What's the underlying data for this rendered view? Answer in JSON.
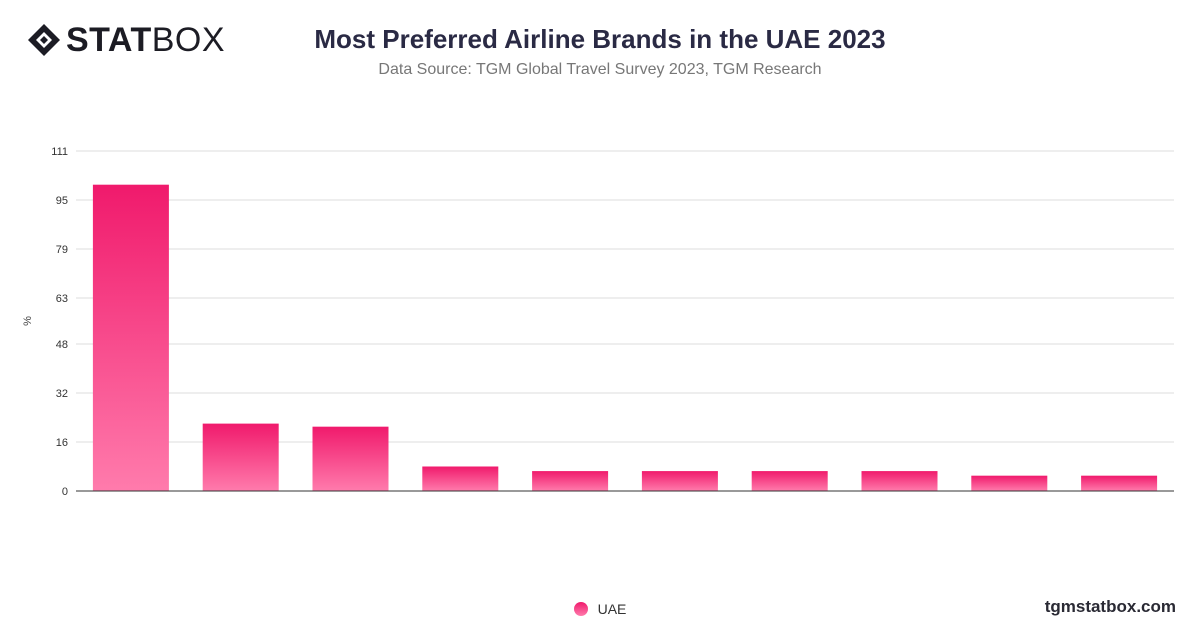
{
  "brand": {
    "logo_bold": "STAT",
    "logo_light": "BOX",
    "site": "tgmstatbox.com"
  },
  "colors": {
    "bar_top": "#f01a6c",
    "bar_bottom": "#ff7bac",
    "grid": "#dddddd",
    "axis": "#333333"
  },
  "chart_data": {
    "type": "bar",
    "title": "Most Preferred Airline Brands in the UAE 2023",
    "subtitle": "Data Source: TGM Global Travel Survey 2023, TGM Research",
    "ylabel": "%",
    "xlabel": "",
    "ylim": [
      0,
      111
    ],
    "yticks": [
      0,
      16,
      32,
      48,
      63,
      79,
      95,
      111
    ],
    "grid": true,
    "legend_position": "bottom-center",
    "categories": [
      "",
      "",
      "",
      "",
      "",
      "",
      "",
      "",
      "",
      ""
    ],
    "series": [
      {
        "name": "UAE",
        "values": [
          100,
          22,
          21,
          8,
          6.5,
          6.5,
          6.5,
          6.5,
          5,
          5
        ]
      }
    ]
  }
}
